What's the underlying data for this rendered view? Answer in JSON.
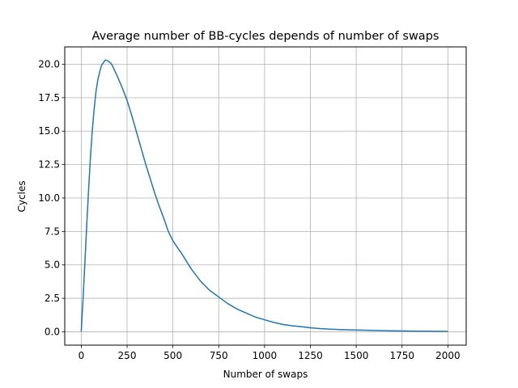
{
  "chart_data": {
    "type": "line",
    "title": "Average number of BB-cycles depends of number of swaps",
    "xlabel": "Number of swaps",
    "ylabel": "Cycles",
    "xlim": [
      -90,
      2100
    ],
    "ylim": [
      -1.0,
      21.3
    ],
    "xticks": [
      0,
      250,
      500,
      750,
      1000,
      1250,
      1500,
      1750,
      2000
    ],
    "xtick_labels": [
      "0",
      "250",
      "500",
      "750",
      "1000",
      "1250",
      "1500",
      "1750",
      "2000"
    ],
    "yticks": [
      0.0,
      2.5,
      5.0,
      7.5,
      10.0,
      12.5,
      15.0,
      17.5,
      20.0
    ],
    "ytick_labels": [
      "0.0",
      "2.5",
      "5.0",
      "7.5",
      "10.0",
      "12.5",
      "15.0",
      "17.5",
      "20.0"
    ],
    "grid": true,
    "line_color": "#1f77b4",
    "series": [
      {
        "x": [
          0,
          10,
          20,
          30,
          40,
          50,
          60,
          70,
          80,
          90,
          100,
          110,
          120,
          130,
          140,
          150,
          160,
          170,
          180,
          190,
          200,
          225,
          250,
          275,
          300,
          325,
          350,
          375,
          400,
          425,
          450,
          475,
          500,
          550,
          600,
          650,
          700,
          750,
          800,
          850,
          900,
          950,
          1000,
          1050,
          1100,
          1150,
          1200,
          1250,
          1300,
          1350,
          1400,
          1450,
          1500,
          1600,
          1700,
          1800,
          1900,
          2000
        ],
        "y": [
          0.0,
          2.5,
          5.2,
          8.0,
          10.6,
          13.0,
          15.0,
          16.6,
          17.9,
          18.8,
          19.4,
          19.9,
          20.1,
          20.3,
          20.3,
          20.2,
          20.1,
          19.9,
          19.6,
          19.3,
          19.0,
          18.2,
          17.3,
          16.2,
          15.0,
          13.8,
          12.6,
          11.5,
          10.4,
          9.4,
          8.5,
          7.5,
          6.8,
          5.8,
          4.7,
          3.8,
          3.1,
          2.6,
          2.1,
          1.7,
          1.4,
          1.1,
          0.9,
          0.7,
          0.55,
          0.45,
          0.38,
          0.3,
          0.24,
          0.2,
          0.17,
          0.15,
          0.13,
          0.1,
          0.07,
          0.05,
          0.04,
          0.03
        ]
      }
    ]
  }
}
